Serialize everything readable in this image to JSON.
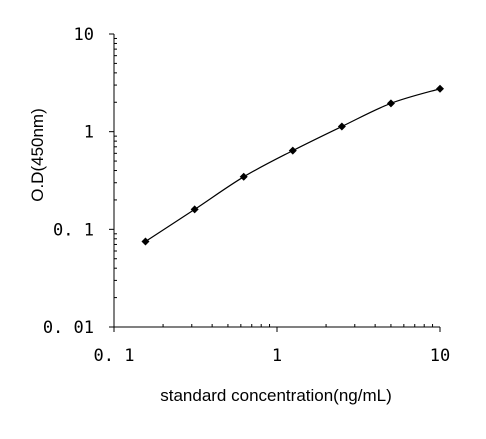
{
  "chart_data": {
    "type": "line",
    "title": "",
    "xlabel": "standard concentration(ng/mL)",
    "ylabel": "O.D(450nm)",
    "x_scale": "log",
    "y_scale": "log",
    "xlim": [
      0.1,
      10
    ],
    "ylim": [
      0.01,
      10
    ],
    "x_ticks": [
      {
        "value": 0.1,
        "label": "0. 1"
      },
      {
        "value": 1,
        "label": "1"
      },
      {
        "value": 10,
        "label": "10"
      }
    ],
    "y_ticks": [
      {
        "value": 0.01,
        "label": "0. 01"
      },
      {
        "value": 0.1,
        "label": "0. 1"
      },
      {
        "value": 1,
        "label": "1"
      },
      {
        "value": 10,
        "label": "10"
      }
    ],
    "grid": false,
    "legend": "none",
    "marker": "diamond",
    "line_color": "#000000",
    "marker_color": "#000000",
    "series": [
      {
        "x": [
          0.156,
          0.3125,
          0.625,
          1.25,
          2.5,
          5,
          10
        ],
        "y": [
          0.075,
          0.16,
          0.345,
          0.64,
          1.13,
          1.95,
          2.75
        ]
      }
    ]
  }
}
